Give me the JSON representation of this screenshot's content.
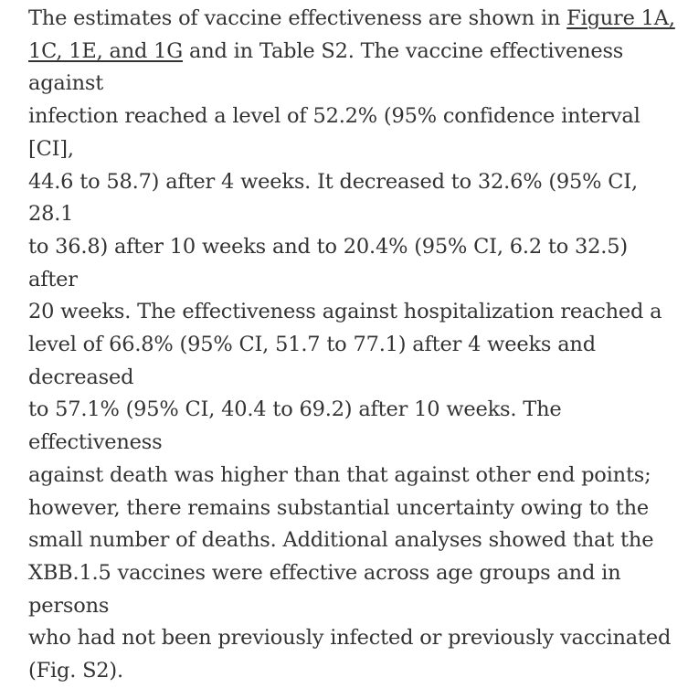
{
  "paragraph": {
    "lines": [
      {
        "text": "The estimates of vaccine effectiveness are shown in ",
        "link": "Figure 1A,"
      },
      {
        "link": "1C, 1E, and 1G",
        "text": " and in Table S2. The vaccine effectiveness against"
      },
      {
        "text": "infection reached a level of 52.2% (95% confidence interval [CI],"
      },
      {
        "text": "44.6 to 58.7) after 4 weeks. It decreased to 32.6% (95% CI, 28.1"
      },
      {
        "text": "to 36.8) after 10 weeks and to 20.4% (95% CI, 6.2 to 32.5) after"
      },
      {
        "text": "20 weeks. The effectiveness against hospitalization reached a"
      },
      {
        "text": "level of 66.8% (95% CI, 51.7 to 77.1) after 4 weeks and decreased"
      },
      {
        "text": "to 57.1% (95% CI, 40.4 to 69.2) after 10 weeks. The effectiveness"
      },
      {
        "text": "against death was higher than that against other end points;"
      },
      {
        "text": "however, there remains substantial uncertainty owing to the"
      },
      {
        "text": "small number of deaths. Additional analyses showed that the"
      },
      {
        "text": "XBB.1.5 vaccines were effective across age groups and in persons"
      },
      {
        "text": "who had not been previously infected or previously vaccinated"
      },
      {
        "text": "(Fig. S2)."
      }
    ]
  }
}
